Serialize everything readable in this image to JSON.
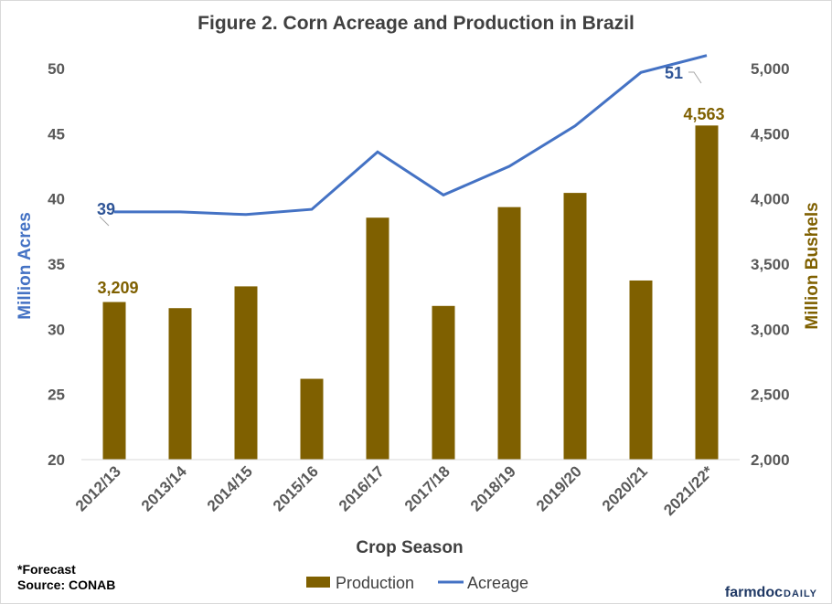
{
  "chart_data": {
    "type": "bar+line",
    "title": "Figure  2. Corn Acreage  and  Production  in  Brazil",
    "xlabel": "Crop Season",
    "ylabel_left": "Million Acres",
    "ylabel_right": "Million Bushels",
    "categories": [
      "2012/13",
      "2013/14",
      "2014/15",
      "2015/16",
      "2016/17",
      "2017/18",
      "2018/19",
      "2019/20",
      "2020/21",
      "2021/22*"
    ],
    "y_left": {
      "min": 20,
      "max": 50,
      "ticks": [
        "20",
        "25",
        "30",
        "35",
        "40",
        "45",
        "50"
      ]
    },
    "y_right": {
      "min": 2000,
      "max": 5000,
      "ticks": [
        "2,000",
        "2,500",
        "3,000",
        "3,500",
        "4,000",
        "4,500",
        "5,000"
      ]
    },
    "series": [
      {
        "name": "Production",
        "type": "bar",
        "axis": "right",
        "color": "#7f6000",
        "values": [
          3209,
          3162,
          3329,
          2620,
          3856,
          3179,
          3937,
          4046,
          3374,
          4563
        ]
      },
      {
        "name": "Acreage",
        "type": "line",
        "axis": "left",
        "color": "#4472c4",
        "values": [
          39.0,
          39.0,
          38.8,
          39.2,
          43.6,
          40.3,
          42.5,
          45.6,
          49.7,
          51.0
        ]
      }
    ],
    "data_labels": {
      "production_first": "3,209",
      "production_last": "4,563",
      "acreage_first": "39",
      "acreage_last": "51"
    },
    "legend": {
      "position": "bottom",
      "items": [
        "Production",
        "Acreage"
      ]
    },
    "grid": false
  },
  "notes": {
    "forecast": "*Forecast",
    "source": "Source: CONAB"
  },
  "brand": {
    "part1": "farmdoc",
    "part2": "DAILY"
  }
}
